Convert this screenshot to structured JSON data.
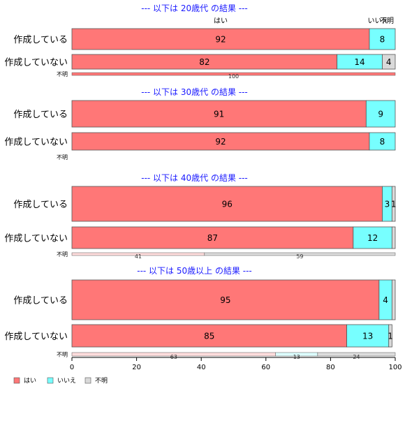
{
  "chart_data": {
    "type": "bar",
    "orientation": "horizontal",
    "stacked": true,
    "xlim": [
      0,
      100
    ],
    "xticks": [
      0,
      20,
      40,
      60,
      80,
      100
    ],
    "categories_header": [
      "はい",
      "いいえ",
      "不明"
    ],
    "colors": {
      "はい": "#ff7777",
      "いいえ": "#77ffff",
      "不明": "#d9d9d9"
    },
    "legend": {
      "position": "bottom-left",
      "entries": [
        "はい",
        "いいえ",
        "不明"
      ]
    },
    "panels": [
      {
        "title": "--- 以下は 20歳代 の結果 ---",
        "rows": [
          {
            "label": "作成している",
            "values": [
              92,
              8,
              0
            ],
            "labels": [
              "92",
              "8",
              ""
            ],
            "thin": false
          },
          {
            "label": "作成していない",
            "values": [
              82,
              14,
              4
            ],
            "labels": [
              "82",
              "14",
              "4"
            ],
            "thin": false
          },
          {
            "label": "不明",
            "values": [
              100,
              0,
              0
            ],
            "labels": [
              "100",
              "",
              ""
            ],
            "thin": true
          }
        ]
      },
      {
        "title": "--- 以下は 30歳代 の結果 ---",
        "rows": [
          {
            "label": "作成している",
            "values": [
              91,
              9,
              0
            ],
            "labels": [
              "91",
              "9",
              ""
            ],
            "thin": false
          },
          {
            "label": "作成していない",
            "values": [
              92,
              8,
              0
            ],
            "labels": [
              "92",
              "8",
              ""
            ],
            "thin": false
          },
          {
            "label": "不明",
            "values": [
              0,
              0,
              0
            ],
            "labels": [
              "",
              "",
              ""
            ],
            "thin": true
          }
        ]
      },
      {
        "title": "--- 以下は 40歳代 の結果 ---",
        "rows": [
          {
            "label": "作成している",
            "values": [
              96,
              3,
              1
            ],
            "labels": [
              "96",
              "3",
              "1"
            ],
            "thin": false
          },
          {
            "label": "作成していない",
            "values": [
              87,
              12,
              1
            ],
            "labels": [
              "87",
              "12",
              ""
            ],
            "thin": false
          },
          {
            "label": "不明",
            "values": [
              41,
              59,
              0
            ],
            "labels": [
              "41",
              "59",
              ""
            ],
            "thin": true,
            "palette": [
              "#ffdddd",
              "#dddddd",
              "#dddddd"
            ]
          }
        ]
      },
      {
        "title": "--- 以下は 50歳以上 の結果 ---",
        "rows": [
          {
            "label": "作成している",
            "values": [
              95,
              4,
              1
            ],
            "labels": [
              "95",
              "4",
              ""
            ],
            "thin": false
          },
          {
            "label": "作成していない",
            "values": [
              85,
              13,
              1
            ],
            "labels": [
              "85",
              "13",
              "1"
            ],
            "thin": false
          },
          {
            "label": "不明",
            "values": [
              63,
              13,
              24
            ],
            "labels": [
              "63",
              "13",
              "24"
            ],
            "thin": true,
            "palette": [
              "#ffdddd",
              "#ddffff",
              "#dddddd"
            ]
          }
        ]
      }
    ]
  }
}
